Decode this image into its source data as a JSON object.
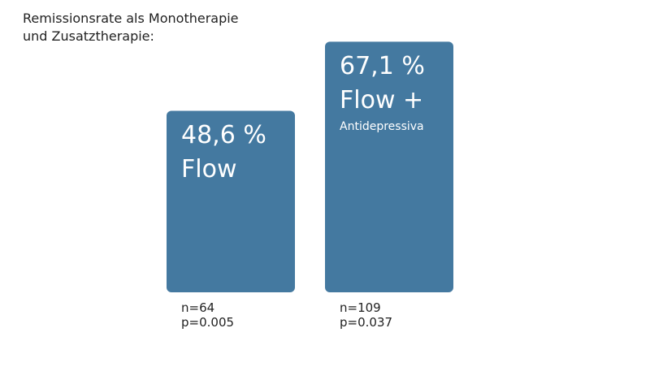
{
  "title": {
    "line1": "Remissionsrate als Monotherapie",
    "line2": "und Zusatztherapie:"
  },
  "colors": {
    "bar": "#4479a0",
    "bar_text": "#ffffff"
  },
  "chart_data": {
    "type": "bar",
    "title": "Remissionsrate als Monotherapie und Zusatztherapie:",
    "xlabel": "",
    "ylabel": "",
    "ylim": [
      0,
      100
    ],
    "grid": false,
    "categories": [
      "Flow",
      "Flow + Antidepressiva"
    ],
    "values": [
      48.6,
      67.1
    ],
    "bars": [
      {
        "value_label": "48,6 %",
        "label": "Flow",
        "sublabel": "",
        "n": "n=64",
        "p": "p=0.005"
      },
      {
        "value_label": "67,1 %",
        "label": "Flow +",
        "sublabel": "Antidepressiva",
        "n": "n=109",
        "p": "p=0.037"
      }
    ]
  }
}
